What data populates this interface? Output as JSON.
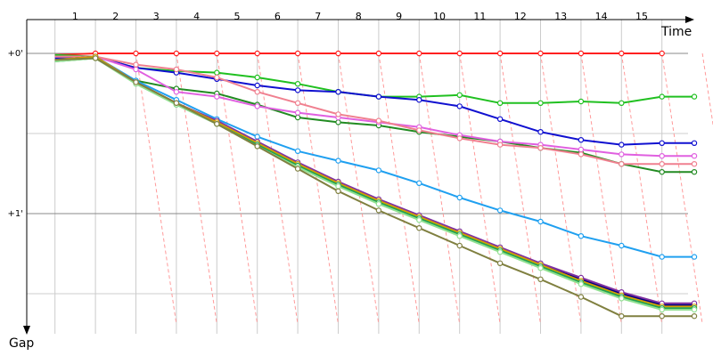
{
  "chart_data": {
    "type": "line",
    "xlabel": "Time",
    "ylabel": "Gap",
    "x_ticks": [
      "1",
      "2",
      "3",
      "4",
      "5",
      "6",
      "7",
      "8",
      "9",
      "10",
      "11",
      "12",
      "13",
      "14",
      "15"
    ],
    "y_ticks": [
      {
        "value": 0,
        "label": "+0'"
      },
      {
        "value": 1,
        "label": "+1'"
      }
    ],
    "xlim": [
      0,
      16.2
    ],
    "ylim": [
      -0.02,
      1.75
    ],
    "grid": true,
    "series": [
      {
        "color": "#ff2020",
        "x": [
          0.5,
          1.5,
          2.5,
          3.5,
          4.5,
          5.5,
          6.5,
          7.5,
          8.5,
          9.5,
          10.5,
          11.5,
          12.5,
          13.5,
          14.5,
          15.5
        ],
        "values": [
          0.01,
          0.0,
          0.0,
          0.0,
          0.0,
          0.0,
          0.0,
          0.0,
          0.0,
          0.0,
          0.0,
          0.0,
          0.0,
          0.0,
          0.0,
          0.0
        ]
      },
      {
        "color": "#20c020",
        "x": [
          0.5,
          1.5,
          2.5,
          3.5,
          4.5,
          5.5,
          6.5,
          7.5,
          8.5,
          9.5,
          10.5,
          11.5,
          12.5,
          13.5,
          14.5,
          15.5,
          16.3
        ],
        "values": [
          0.01,
          0.02,
          0.09,
          0.11,
          0.12,
          0.15,
          0.19,
          0.24,
          0.27,
          0.27,
          0.26,
          0.31,
          0.31,
          0.3,
          0.31,
          0.27,
          0.27
        ]
      },
      {
        "color": "#1010d0",
        "x": [
          0.5,
          1.5,
          2.5,
          3.5,
          4.5,
          5.5,
          6.5,
          7.5,
          8.5,
          9.5,
          10.5,
          11.5,
          12.5,
          13.5,
          14.5,
          15.5,
          16.3
        ],
        "values": [
          0.03,
          0.02,
          0.09,
          0.12,
          0.16,
          0.2,
          0.23,
          0.24,
          0.27,
          0.29,
          0.33,
          0.41,
          0.49,
          0.54,
          0.57,
          0.56,
          0.56
        ]
      },
      {
        "color": "#228b22",
        "x": [
          0.5,
          1.5,
          2.5,
          3.5,
          4.5,
          5.5,
          6.5,
          7.5,
          8.5,
          9.5,
          10.5,
          11.5,
          12.5,
          13.5,
          14.5,
          15.5,
          16.3
        ],
        "values": [
          0.04,
          0.03,
          0.17,
          0.22,
          0.25,
          0.32,
          0.4,
          0.43,
          0.45,
          0.49,
          0.52,
          0.55,
          0.59,
          0.62,
          0.69,
          0.74,
          0.74
        ]
      },
      {
        "color": "#e060e0",
        "x": [
          0.5,
          1.5,
          2.5,
          3.5,
          4.5,
          5.5,
          6.5,
          7.5,
          8.5,
          9.5,
          10.5,
          11.5,
          12.5,
          13.5,
          14.5,
          15.5,
          16.3
        ],
        "values": [
          0.02,
          0.02,
          0.1,
          0.24,
          0.27,
          0.33,
          0.37,
          0.4,
          0.43,
          0.46,
          0.51,
          0.55,
          0.57,
          0.6,
          0.63,
          0.64,
          0.64
        ]
      },
      {
        "color": "#f08090",
        "x": [
          0.5,
          1.5,
          2.5,
          3.5,
          4.5,
          5.5,
          6.5,
          7.5,
          8.5,
          9.5,
          10.5,
          11.5,
          12.5,
          13.5,
          14.5,
          15.5,
          16.3
        ],
        "values": [
          0.02,
          0.02,
          0.07,
          0.1,
          0.15,
          0.24,
          0.31,
          0.38,
          0.42,
          0.48,
          0.53,
          0.57,
          0.59,
          0.63,
          0.69,
          0.69,
          0.69
        ]
      },
      {
        "color": "#20a0f0",
        "x": [
          0.5,
          1.5,
          2.5,
          3.5,
          4.5,
          5.5,
          6.5,
          7.5,
          8.5,
          9.5,
          10.5,
          11.5,
          12.5,
          13.5,
          14.5,
          15.5,
          16.3
        ],
        "values": [
          0.04,
          0.02,
          0.17,
          0.29,
          0.41,
          0.52,
          0.61,
          0.67,
          0.73,
          0.81,
          0.9,
          0.98,
          1.05,
          1.14,
          1.2,
          1.27,
          1.27
        ]
      },
      {
        "color": "#000080",
        "x": [
          0.5,
          1.5,
          2.5,
          3.5,
          4.5,
          5.5,
          6.5,
          7.5,
          8.5,
          9.5,
          10.5,
          11.5,
          12.5,
          13.5,
          14.5,
          15.5,
          16.3
        ],
        "values": [
          0.04,
          0.02,
          0.18,
          0.31,
          0.43,
          0.56,
          0.69,
          0.81,
          0.92,
          1.02,
          1.12,
          1.22,
          1.32,
          1.41,
          1.5,
          1.57,
          1.57
        ]
      },
      {
        "color": "#8030a0",
        "x": [
          0.5,
          1.5,
          2.5,
          3.5,
          4.5,
          5.5,
          6.5,
          7.5,
          8.5,
          9.5,
          10.5,
          11.5,
          12.5,
          13.5,
          14.5,
          15.5,
          16.3
        ],
        "values": [
          0.04,
          0.02,
          0.18,
          0.31,
          0.42,
          0.55,
          0.68,
          0.8,
          0.91,
          1.01,
          1.11,
          1.21,
          1.31,
          1.4,
          1.49,
          1.56,
          1.56
        ]
      },
      {
        "color": "#d4a000",
        "x": [
          0.5,
          1.5,
          2.5,
          3.5,
          4.5,
          5.5,
          6.5,
          7.5,
          8.5,
          9.5,
          10.5,
          11.5,
          12.5,
          13.5,
          14.5,
          15.5,
          16.3
        ],
        "values": [
          0.04,
          0.02,
          0.18,
          0.31,
          0.43,
          0.56,
          0.69,
          0.81,
          0.92,
          1.02,
          1.12,
          1.22,
          1.32,
          1.42,
          1.51,
          1.58,
          1.58
        ]
      },
      {
        "color": "#20a050",
        "x": [
          0.5,
          1.5,
          2.5,
          3.5,
          4.5,
          5.5,
          6.5,
          7.5,
          8.5,
          9.5,
          10.5,
          11.5,
          12.5,
          13.5,
          14.5,
          15.5,
          16.3
        ],
        "values": [
          0.05,
          0.03,
          0.18,
          0.32,
          0.44,
          0.57,
          0.7,
          0.82,
          0.93,
          1.03,
          1.13,
          1.23,
          1.33,
          1.43,
          1.52,
          1.59,
          1.59
        ]
      },
      {
        "color": "#90e090",
        "x": [
          0.5,
          1.5,
          2.5,
          3.5,
          4.5,
          5.5,
          6.5,
          7.5,
          8.5,
          9.5,
          10.5,
          11.5,
          12.5,
          13.5,
          14.5,
          15.5,
          16.3
        ],
        "values": [
          0.05,
          0.03,
          0.19,
          0.32,
          0.44,
          0.58,
          0.71,
          0.83,
          0.94,
          1.04,
          1.14,
          1.24,
          1.34,
          1.44,
          1.53,
          1.6,
          1.6
        ]
      },
      {
        "color": "#808040",
        "x": [
          0.5,
          1.5,
          2.5,
          3.5,
          4.5,
          5.5,
          6.5,
          7.5,
          8.5,
          9.5,
          10.5,
          11.5,
          12.5,
          13.5,
          14.5,
          15.5,
          16.3
        ],
        "values": [
          0.04,
          0.03,
          0.18,
          0.31,
          0.44,
          0.58,
          0.72,
          0.86,
          0.98,
          1.09,
          1.2,
          1.31,
          1.41,
          1.52,
          1.64,
          1.64,
          1.64
        ]
      }
    ]
  }
}
